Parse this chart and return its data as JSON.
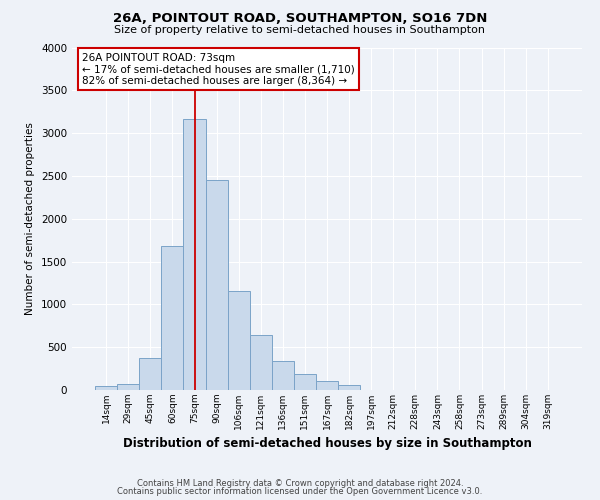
{
  "title": "26A, POINTOUT ROAD, SOUTHAMPTON, SO16 7DN",
  "subtitle": "Size of property relative to semi-detached houses in Southampton",
  "xlabel": "Distribution of semi-detached houses by size in Southampton",
  "ylabel": "Number of semi-detached properties",
  "footnote1": "Contains HM Land Registry data © Crown copyright and database right 2024.",
  "footnote2": "Contains public sector information licensed under the Open Government Licence v3.0.",
  "bar_color": "#c9d9eb",
  "bar_edge_color": "#7ba3c8",
  "bg_color": "#eef2f8",
  "annotation_box_color": "#ffffff",
  "annotation_border_color": "#cc0000",
  "vline_color": "#cc0000",
  "categories": [
    "14sqm",
    "29sqm",
    "45sqm",
    "60sqm",
    "75sqm",
    "90sqm",
    "106sqm",
    "121sqm",
    "136sqm",
    "151sqm",
    "167sqm",
    "182sqm",
    "197sqm",
    "212sqm",
    "228sqm",
    "243sqm",
    "258sqm",
    "273sqm",
    "289sqm",
    "304sqm",
    "319sqm"
  ],
  "values": [
    50,
    75,
    370,
    1680,
    3160,
    2450,
    1160,
    640,
    335,
    185,
    110,
    55,
    0,
    0,
    0,
    0,
    0,
    0,
    0,
    0,
    0
  ],
  "ylim": [
    0,
    4000
  ],
  "yticks": [
    0,
    500,
    1000,
    1500,
    2000,
    2500,
    3000,
    3500,
    4000
  ],
  "vline_x_idx": 4,
  "annotation_text_line1": "26A POINTOUT ROAD: 73sqm",
  "annotation_text_line2": "← 17% of semi-detached houses are smaller (1,710)",
  "annotation_text_line3": "82% of semi-detached houses are larger (8,364) →"
}
